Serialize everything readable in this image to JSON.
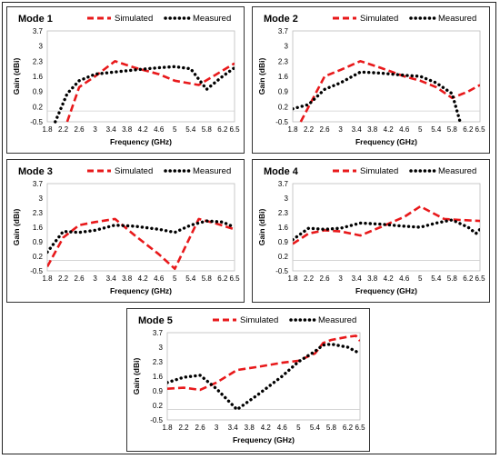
{
  "legend": {
    "simulated": "Simulated",
    "measured": "Measured"
  },
  "colors": {
    "simulated": "#e8191b",
    "measured": "#000000"
  },
  "axes": {
    "xlabel": "Frequency (GHz)",
    "ylabel": "Gain (dBi)"
  },
  "chart_data": [
    {
      "type": "line",
      "title": "Mode 1",
      "xlabel": "Frequency (GHz)",
      "ylabel": "Gain (dBi)",
      "x_ticks": [
        "1.8",
        "2.2",
        "2.6",
        "3",
        "3.4",
        "3.8",
        "4.2",
        "4.6",
        "5",
        "5.4",
        "5.8",
        "6.2",
        "6.5"
      ],
      "y_ticks": [
        "3.7",
        "3",
        "2.3",
        "1.6",
        "0.9",
        "0.2",
        "-0.5"
      ],
      "xlim": [
        1.8,
        6.5
      ],
      "ylim": [
        -0.5,
        3.7
      ],
      "series": [
        {
          "name": "Simulated",
          "style": "dashed",
          "x": [
            2.3,
            2.6,
            3.0,
            3.5,
            4.0,
            4.6,
            5.0,
            5.6,
            6.5
          ],
          "y": [
            -0.5,
            1.1,
            1.6,
            2.3,
            2.0,
            1.7,
            1.4,
            1.2,
            2.2
          ]
        },
        {
          "name": "Measured",
          "style": "dotted",
          "x": [
            2.0,
            2.3,
            2.6,
            3.0,
            3.5,
            4.0,
            4.6,
            5.0,
            5.4,
            5.8,
            6.2,
            6.5
          ],
          "y": [
            -0.5,
            0.8,
            1.4,
            1.7,
            1.8,
            1.9,
            2.0,
            2.05,
            1.95,
            1.0,
            1.6,
            2.0
          ]
        }
      ]
    },
    {
      "type": "line",
      "title": "Mode 2",
      "xlabel": "Frequency (GHz)",
      "ylabel": "Gain (dBi)",
      "x_ticks": [
        "1.8",
        "2.2",
        "2.6",
        "3",
        "3.4",
        "3.8",
        "4.2",
        "4.6",
        "5",
        "5.4",
        "5.8",
        "6.2",
        "6.5"
      ],
      "y_ticks": [
        "3.7",
        "3",
        "2.3",
        "1.6",
        "0.9",
        "0.2",
        "-0.5"
      ],
      "xlim": [
        1.8,
        6.5
      ],
      "ylim": [
        -0.5,
        3.7
      ],
      "series": [
        {
          "name": "Simulated",
          "style": "dashed",
          "x": [
            2.0,
            2.6,
            3.0,
            3.5,
            4.0,
            4.6,
            5.0,
            5.4,
            5.8,
            6.2,
            6.5
          ],
          "y": [
            -0.5,
            1.6,
            1.9,
            2.3,
            2.0,
            1.6,
            1.4,
            1.1,
            0.6,
            0.9,
            1.2
          ]
        },
        {
          "name": "Measured",
          "style": "dotted",
          "x": [
            1.8,
            2.2,
            2.6,
            3.0,
            3.5,
            4.0,
            4.6,
            5.0,
            5.4,
            5.8,
            6.0
          ],
          "y": [
            0.1,
            0.3,
            1.0,
            1.3,
            1.8,
            1.75,
            1.65,
            1.6,
            1.3,
            0.8,
            -0.5
          ]
        }
      ]
    },
    {
      "type": "line",
      "title": "Mode 3",
      "xlabel": "Frequency (GHz)",
      "ylabel": "Gain (dBi)",
      "x_ticks": [
        "1.8",
        "2.2",
        "2.6",
        "3",
        "3.4",
        "3.8",
        "4.2",
        "4.6",
        "5",
        "5.4",
        "5.8",
        "6.2",
        "6.5"
      ],
      "y_ticks": [
        "3.7",
        "3",
        "2.3",
        "1.6",
        "0.9",
        "0.2",
        "-0.5"
      ],
      "xlim": [
        1.8,
        6.5
      ],
      "ylim": [
        -0.5,
        3.7
      ],
      "series": [
        {
          "name": "Simulated",
          "style": "dashed",
          "x": [
            1.8,
            2.2,
            2.6,
            3.0,
            3.5,
            4.0,
            4.6,
            5.0,
            5.6,
            6.0,
            6.5
          ],
          "y": [
            -0.3,
            1.1,
            1.7,
            1.85,
            2.0,
            1.2,
            0.3,
            -0.4,
            2.0,
            1.8,
            1.5
          ]
        },
        {
          "name": "Measured",
          "style": "dotted",
          "x": [
            1.8,
            2.2,
            2.6,
            3.0,
            3.5,
            4.0,
            4.6,
            5.0,
            5.4,
            5.8,
            6.2,
            6.5
          ],
          "y": [
            0.4,
            1.4,
            1.35,
            1.45,
            1.7,
            1.65,
            1.5,
            1.35,
            1.7,
            1.9,
            1.85,
            1.6
          ]
        }
      ]
    },
    {
      "type": "line",
      "title": "Mode 4",
      "xlabel": "Frequency (GHz)",
      "ylabel": "Gain (dBi)",
      "x_ticks": [
        "1.8",
        "2.2",
        "2.6",
        "3",
        "3.4",
        "3.8",
        "4.2",
        "4.6",
        "5",
        "5.4",
        "5.8",
        "6.2",
        "6.5"
      ],
      "y_ticks": [
        "3.7",
        "3",
        "2.3",
        "1.6",
        "0.9",
        "0.2",
        "-0.5"
      ],
      "xlim": [
        1.8,
        6.5
      ],
      "ylim": [
        -0.5,
        3.7
      ],
      "series": [
        {
          "name": "Simulated",
          "style": "dashed",
          "x": [
            1.8,
            2.2,
            2.6,
            3.0,
            3.5,
            4.0,
            4.6,
            5.0,
            5.6,
            6.0,
            6.5
          ],
          "y": [
            0.8,
            1.3,
            1.45,
            1.4,
            1.2,
            1.6,
            2.1,
            2.6,
            2.0,
            1.95,
            1.9
          ]
        },
        {
          "name": "Measured",
          "style": "dotted",
          "x": [
            1.8,
            2.2,
            2.6,
            3.0,
            3.5,
            4.0,
            4.6,
            5.0,
            5.4,
            5.8,
            6.2,
            6.4,
            6.5
          ],
          "y": [
            1.0,
            1.55,
            1.5,
            1.55,
            1.8,
            1.75,
            1.65,
            1.6,
            1.8,
            1.95,
            1.6,
            1.3,
            1.5
          ]
        }
      ]
    },
    {
      "type": "line",
      "title": "Mode 5",
      "xlabel": "Frequency (GHz)",
      "ylabel": "Gain (dBi)",
      "x_ticks": [
        "1.8",
        "2.2",
        "2.6",
        "3",
        "3.4",
        "3.8",
        "4.2",
        "4.6",
        "5",
        "5.4",
        "5.8",
        "6.2",
        "6.5"
      ],
      "y_ticks": [
        "3.7",
        "3",
        "2.3",
        "1.6",
        "0.9",
        "0.2",
        "-0.5"
      ],
      "xlim": [
        1.8,
        6.5
      ],
      "ylim": [
        -0.5,
        3.7
      ],
      "series": [
        {
          "name": "Simulated",
          "style": "dashed",
          "x": [
            1.8,
            2.2,
            2.6,
            3.0,
            3.5,
            4.0,
            4.6,
            5.0,
            5.4,
            5.6,
            5.8,
            6.2,
            6.4,
            6.5
          ],
          "y": [
            1.0,
            1.05,
            0.95,
            1.3,
            1.9,
            2.05,
            2.25,
            2.35,
            2.7,
            3.2,
            3.35,
            3.5,
            3.55,
            3.3
          ]
        },
        {
          "name": "Measured",
          "style": "dotted",
          "x": [
            1.8,
            2.2,
            2.6,
            3.0,
            3.5,
            4.0,
            4.6,
            5.0,
            5.4,
            5.6,
            5.8,
            6.2,
            6.5
          ],
          "y": [
            1.3,
            1.55,
            1.65,
            1.0,
            0.0,
            0.7,
            1.6,
            2.3,
            2.8,
            3.1,
            3.15,
            3.0,
            2.7
          ]
        }
      ]
    }
  ]
}
